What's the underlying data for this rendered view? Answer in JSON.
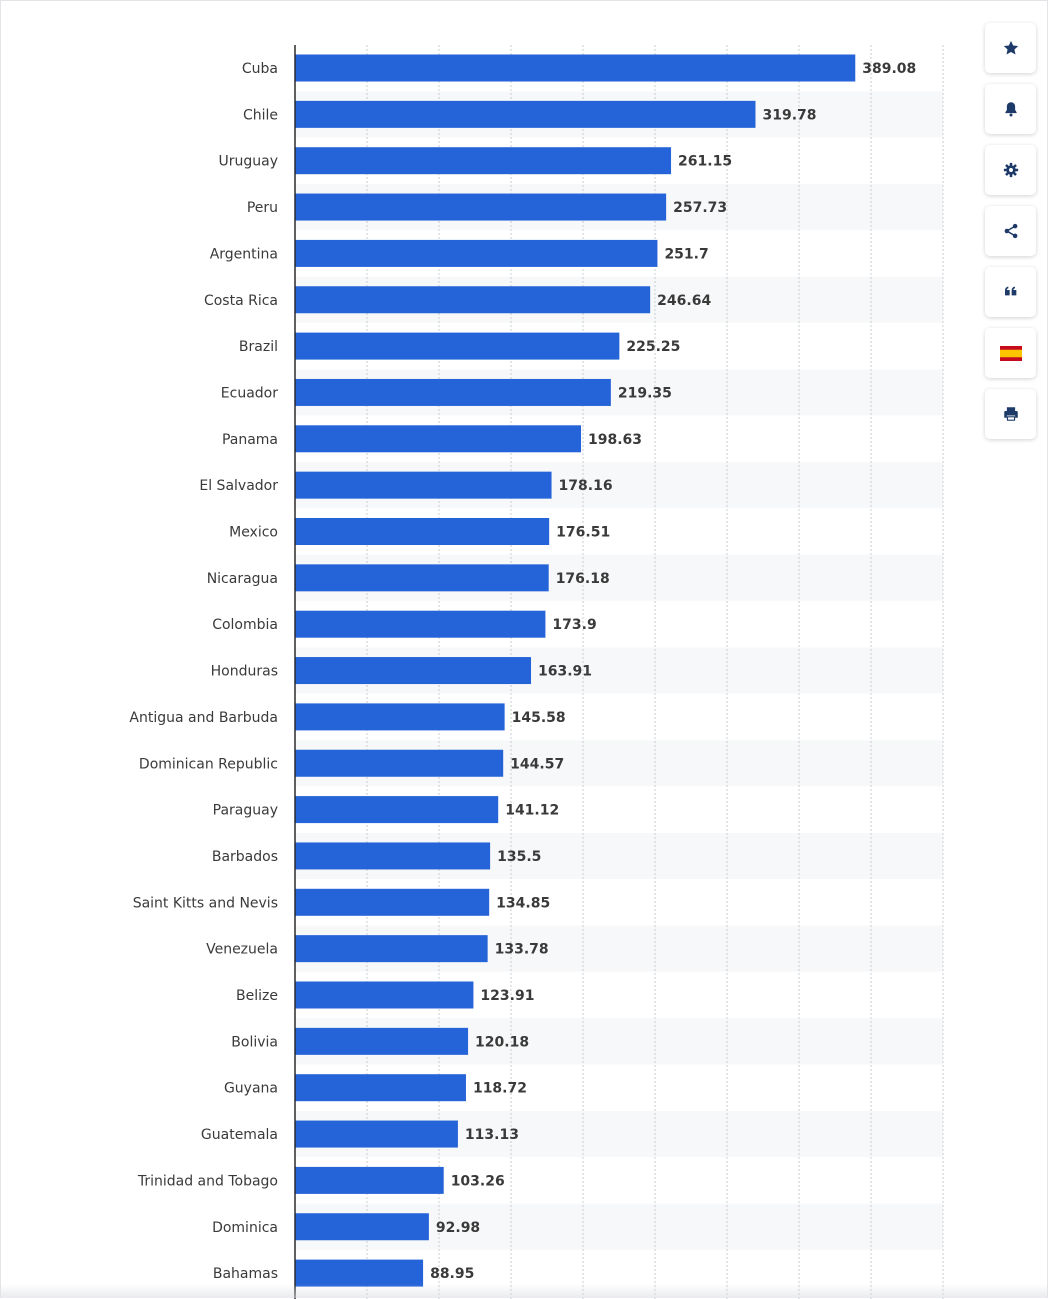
{
  "toolbar": {
    "buttons": [
      {
        "icon": "star-icon",
        "name": "favorite-button"
      },
      {
        "icon": "bell-icon",
        "name": "notification-button"
      },
      {
        "icon": "gear-icon",
        "name": "settings-button"
      },
      {
        "icon": "share-icon",
        "name": "share-button"
      },
      {
        "icon": "quote-icon",
        "name": "cite-button"
      },
      {
        "icon": "spain-flag-icon",
        "name": "language-button"
      },
      {
        "icon": "printer-icon",
        "name": "print-button"
      }
    ],
    "icon_color": "#1d3a68"
  },
  "chart_data": {
    "type": "bar",
    "orientation": "horizontal",
    "categories": [
      "Cuba",
      "Chile",
      "Uruguay",
      "Peru",
      "Argentina",
      "Costa Rica",
      "Brazil",
      "Ecuador",
      "Panama",
      "El Salvador",
      "Mexico",
      "Nicaragua",
      "Colombia",
      "Honduras",
      "Antigua and Barbuda",
      "Dominican Republic",
      "Paraguay",
      "Barbados",
      "Saint Kitts and Nevis",
      "Venezuela",
      "Belize",
      "Bolivia",
      "Guyana",
      "Guatemala",
      "Trinidad and Tobago",
      "Dominica",
      "Bahamas"
    ],
    "values": [
      389.08,
      319.78,
      261.15,
      257.73,
      251.7,
      246.64,
      225.25,
      219.35,
      198.63,
      178.16,
      176.51,
      176.18,
      173.9,
      163.91,
      145.58,
      144.57,
      141.12,
      135.5,
      134.85,
      133.78,
      123.91,
      120.18,
      118.72,
      113.13,
      103.26,
      92.98,
      88.95
    ],
    "value_labels": [
      "389.08",
      "319.78",
      "261.15",
      "257.73",
      "251.7",
      "246.64",
      "225.25",
      "219.35",
      "198.63",
      "178.16",
      "176.51",
      "176.18",
      "173.9",
      "163.91",
      "145.58",
      "144.57",
      "141.12",
      "135.5",
      "134.85",
      "133.78",
      "123.91",
      "120.18",
      "118.72",
      "113.13",
      "103.26",
      "92.98",
      "88.95"
    ],
    "xlim": [
      0,
      450
    ],
    "x_grid_step": 50,
    "grid": true,
    "bar_color": "#2563d9",
    "label_color": "#3a3a3a",
    "value_label_color": "#3a3a3a",
    "stripe_color": "#f7f8f9"
  }
}
